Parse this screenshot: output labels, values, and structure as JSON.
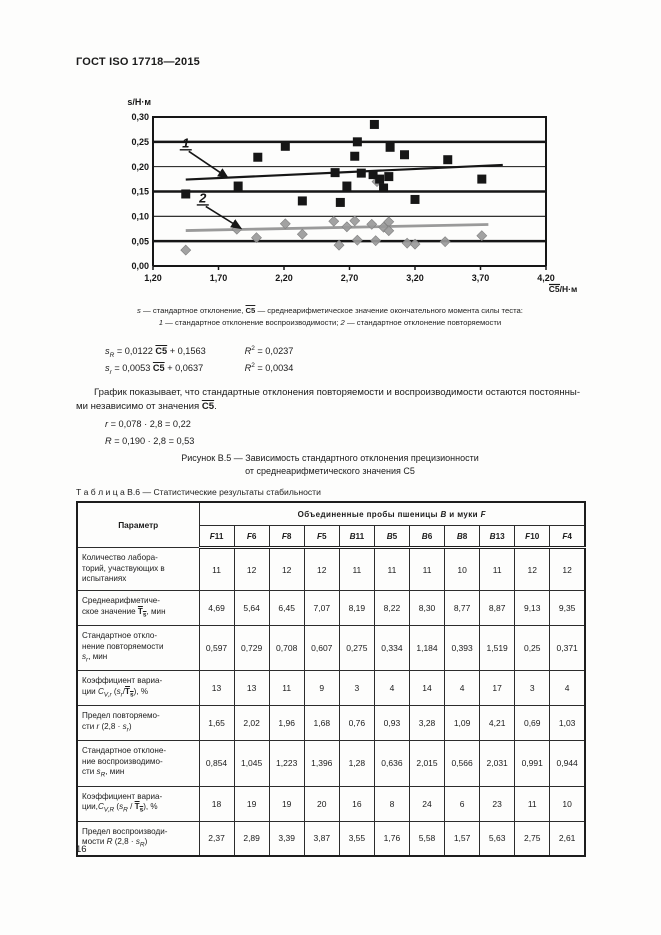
{
  "page": {
    "header": "ГОСТ ISO 17718—2015",
    "page_number": "16"
  },
  "chart_data": {
    "type": "scatter",
    "title": "",
    "ylabel": "s/Н·м",
    "xlabel": "C5/Н·м",
    "xlim": [
      1.2,
      4.2
    ],
    "ylim": [
      0.0,
      0.3
    ],
    "x_ticks": [
      "1,20",
      "1,70",
      "2,20",
      "2,70",
      "3,20",
      "3,70",
      "4,20"
    ],
    "y_ticks": [
      "0,30",
      "0,25",
      "0,20",
      "0,15",
      "0,10",
      "0,05",
      "0,00"
    ],
    "grid": "horizontal",
    "legend_position": "none",
    "series": [
      {
        "name": "1 — стандартное отклонение воспроизводимости",
        "marker": "square",
        "color": "#161616",
        "points": [
          [
            1.45,
            0.145
          ],
          [
            1.85,
            0.161
          ],
          [
            2.0,
            0.219
          ],
          [
            2.21,
            0.241
          ],
          [
            2.34,
            0.131
          ],
          [
            2.59,
            0.188
          ],
          [
            2.63,
            0.128
          ],
          [
            2.68,
            0.161
          ],
          [
            2.74,
            0.221
          ],
          [
            2.76,
            0.25
          ],
          [
            2.79,
            0.187
          ],
          [
            2.89,
            0.285
          ],
          [
            2.88,
            0.184
          ],
          [
            2.93,
            0.175
          ],
          [
            2.96,
            0.157
          ],
          [
            3.01,
            0.239
          ],
          [
            3.0,
            0.18
          ],
          [
            3.12,
            0.224
          ],
          [
            3.2,
            0.134
          ],
          [
            3.45,
            0.214
          ],
          [
            3.71,
            0.175
          ]
        ]
      },
      {
        "name": "2 — стандартное отклонение повторяемости",
        "marker": "diamond",
        "color": "#9a9a9a",
        "points": [
          [
            1.45,
            0.032
          ],
          [
            1.84,
            0.074
          ],
          [
            1.99,
            0.057
          ],
          [
            2.21,
            0.085
          ],
          [
            2.34,
            0.064
          ],
          [
            2.58,
            0.09
          ],
          [
            2.62,
            0.042
          ],
          [
            2.68,
            0.079
          ],
          [
            2.74,
            0.091
          ],
          [
            2.76,
            0.052
          ],
          [
            2.87,
            0.084
          ],
          [
            2.9,
            0.051
          ],
          [
            2.91,
            0.17
          ],
          [
            2.96,
            0.078
          ],
          [
            3.0,
            0.089
          ],
          [
            3.0,
            0.071
          ],
          [
            3.14,
            0.046
          ],
          [
            3.2,
            0.044
          ],
          [
            3.43,
            0.049
          ],
          [
            3.71,
            0.061
          ]
        ]
      }
    ],
    "trend_lines": [
      {
        "label": "1",
        "slope": 0.0122,
        "intercept": 0.1563,
        "x1": 1.45,
        "x2": 3.87,
        "color": "#161616",
        "width": 2.2
      },
      {
        "label": "2",
        "slope": 0.0053,
        "intercept": 0.0637,
        "x1": 1.45,
        "x2": 3.76,
        "color": "#9a9a9a",
        "width": 2.8
      }
    ],
    "annotations": [
      {
        "text": "1",
        "x": 1.45,
        "y": 0.239,
        "to_x": 1.77,
        "to_y": 0.178
      },
      {
        "text": "2",
        "x": 1.58,
        "y": 0.128,
        "to_x": 1.87,
        "to_y": 0.076
      }
    ]
  },
  "chart_caption": {
    "line1_html": "<i>s</i> — стандартное отклонение, <span class='ovb'>C5</span> — среднеарифметическое значение окончательного момента силы теста:",
    "line2_html": "<i>1</i> — стандартное отклонение воспроизводимости; <i>2</i> — стандартное отклонение повторяемости"
  },
  "equations": {
    "eq1_html": "<i>s<sub>R</sub></i> = 0,0122 <span class='ovb'>C5</span> + 0,1563",
    "eq1_r2_html": "<i>R</i><sup>2</sup> = 0,0237",
    "eq2_html": "<i>s<sub>r</sub></i> = 0,0053 <span class='ovb'>C5</span> + 0,0637",
    "eq2_r2_html": "<i>R</i><sup>2</sup> = 0,0034"
  },
  "paragraph_html": "График показывает, что стандартные отклонения повторяемости и воспроизводимости остаются постоянны-<br>ми независимо от значения <span class='ovb'>C5</span>.",
  "r_equation_html": "<i>r</i> = 0,078 · 2,8 = 0,22",
  "R_equation_html": "<i>R</i> = 0,190 · 2,8 = 0,53",
  "figure_caption": {
    "line1": "Рисунок В.5 — Зависимость стандартного отклонения прецизионности",
    "line2": "от среднеарифметического значения С5"
  },
  "table": {
    "title": "Т а б л и ц а  В.6 — Статистические результаты стабильности",
    "param_header": "Параметр",
    "group_header_html": "Объединенные пробы пшеницы <i>В</i> и муки <i>F</i>",
    "columns_html": [
      "<i>F</i>11",
      "<i>F</i>6",
      "<i>F</i>8",
      "<i>F</i>5",
      "<i>В</i>11",
      "<i>В</i>5",
      "<i>В</i>6",
      "<i>В</i>8",
      "<i>В</i>13",
      "<i>F</i>10",
      "<i>F</i>4"
    ],
    "rows": [
      {
        "label_html": "Количество лабора-<br>торий, участвующих в<br>испытаниях",
        "values": [
          "11",
          "12",
          "12",
          "12",
          "11",
          "11",
          "11",
          "10",
          "11",
          "12",
          "12"
        ]
      },
      {
        "label_html": "Среднеарифметиче-<br>ское значение <span class='ovb'>T<sub>s</sub></span>, мин",
        "values": [
          "4,69",
          "5,64",
          "6,45",
          "7,07",
          "8,19",
          "8,22",
          "8,30",
          "8,77",
          "8,87",
          "9,13",
          "9,35"
        ]
      },
      {
        "label_html": "Стандартное откло-<br>нение повторяемости<br><i>s<sub>r</sub></i>, мин",
        "values": [
          "0,597",
          "0,729",
          "0,708",
          "0,607",
          "0,275",
          "0,334",
          "1,184",
          "0,393",
          "1,519",
          "0,25",
          "0,371"
        ]
      },
      {
        "label_html": "Коэффициент вариа-<br>ции <i>C<sub>V,r</sub></i> (<i>s<sub>r</sub></i>/<span class='ovb'>T<sub>s</sub></span>), %",
        "values": [
          "13",
          "13",
          "11",
          "9",
          "3",
          "4",
          "14",
          "4",
          "17",
          "3",
          "4"
        ]
      },
      {
        "label_html": "Предел повторяемо-<br>сти <i>r</i> (2,8 · <i>s<sub>r</sub></i>)",
        "values": [
          "1,65",
          "2,02",
          "1,96",
          "1,68",
          "0,76",
          "0,93",
          "3,28",
          "1,09",
          "4,21",
          "0,69",
          "1,03"
        ]
      },
      {
        "label_html": "Стандартное отклоне-<br>ние воспроизводимо-<br>сти <i>s<sub>R</sub></i>, мин",
        "values": [
          "0,854",
          "1,045",
          "1,223",
          "1,396",
          "1,28",
          "0,636",
          "2,015",
          "0,566",
          "2,031",
          "0,991",
          "0,944"
        ]
      },
      {
        "label_html": "Коэффициент вариа-<br>ции,<i>C<sub>V,R</sub></i> (<i>s<sub>R</sub></i> / <span class='ovb'>T<sub>s</sub></span>), %",
        "values": [
          "18",
          "19",
          "19",
          "20",
          "16",
          "8",
          "24",
          "6",
          "23",
          "11",
          "10"
        ]
      },
      {
        "label_html": "Предел воспроизводи-<br>мости <i>R</i> (2,8 · <i>s<sub>R</sub></i>)",
        "values": [
          "2,37",
          "2,89",
          "3,39",
          "3,87",
          "3,55",
          "1,76",
          "5,58",
          "1,57",
          "5,63",
          "2,75",
          "2,61"
        ]
      }
    ]
  }
}
